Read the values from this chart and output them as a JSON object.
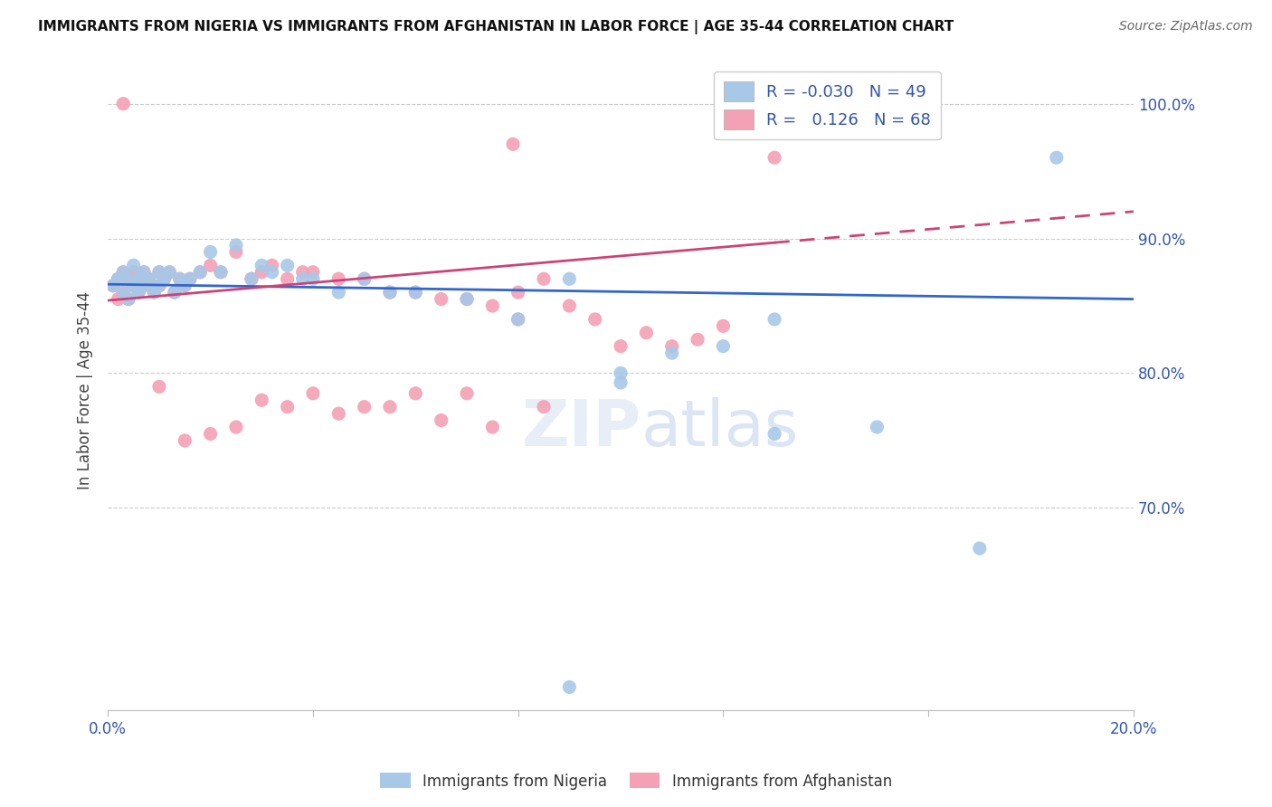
{
  "title": "IMMIGRANTS FROM NIGERIA VS IMMIGRANTS FROM AFGHANISTAN IN LABOR FORCE | AGE 35-44 CORRELATION CHART",
  "source": "Source: ZipAtlas.com",
  "ylabel": "In Labor Force | Age 35-44",
  "blue_color": "#a8c8e8",
  "pink_color": "#f4a0b5",
  "blue_line_color": "#3366cc",
  "pink_line_color": "#cc4477",
  "legend_blue_R": "-0.030",
  "legend_blue_N": "49",
  "legend_pink_R": "0.126",
  "legend_pink_N": "68",
  "nigeria_x": [
    0.001,
    0.002,
    0.003,
    0.003,
    0.004,
    0.004,
    0.005,
    0.005,
    0.006,
    0.006,
    0.007,
    0.007,
    0.008,
    0.009,
    0.01,
    0.01,
    0.011,
    0.012,
    0.013,
    0.014,
    0.015,
    0.016,
    0.018,
    0.02,
    0.022,
    0.025,
    0.028,
    0.03,
    0.032,
    0.035,
    0.038,
    0.04,
    0.045,
    0.05,
    0.055,
    0.06,
    0.07,
    0.08,
    0.09,
    0.1,
    0.11,
    0.12,
    0.09,
    0.13,
    0.15,
    0.17,
    0.185,
    0.13,
    0.1
  ],
  "nigeria_y": [
    0.865,
    0.87,
    0.875,
    0.86,
    0.87,
    0.855,
    0.865,
    0.88,
    0.87,
    0.86,
    0.875,
    0.865,
    0.87,
    0.86,
    0.875,
    0.865,
    0.87,
    0.875,
    0.86,
    0.87,
    0.865,
    0.87,
    0.875,
    0.89,
    0.875,
    0.895,
    0.87,
    0.88,
    0.875,
    0.88,
    0.87,
    0.87,
    0.86,
    0.87,
    0.86,
    0.86,
    0.855,
    0.84,
    0.87,
    0.8,
    0.815,
    0.82,
    0.567,
    0.755,
    0.76,
    0.67,
    0.96,
    0.84,
    0.793
  ],
  "afghanistan_x": [
    0.001,
    0.002,
    0.002,
    0.003,
    0.003,
    0.004,
    0.004,
    0.005,
    0.005,
    0.006,
    0.006,
    0.007,
    0.007,
    0.008,
    0.009,
    0.01,
    0.01,
    0.011,
    0.012,
    0.013,
    0.014,
    0.015,
    0.016,
    0.018,
    0.02,
    0.022,
    0.025,
    0.028,
    0.03,
    0.032,
    0.035,
    0.038,
    0.04,
    0.045,
    0.05,
    0.055,
    0.06,
    0.065,
    0.07,
    0.075,
    0.08,
    0.085,
    0.09,
    0.095,
    0.1,
    0.105,
    0.11,
    0.115,
    0.12,
    0.03,
    0.04,
    0.05,
    0.06,
    0.07,
    0.02,
    0.015,
    0.01,
    0.025,
    0.035,
    0.045,
    0.055,
    0.065,
    0.075,
    0.085,
    0.13,
    0.08,
    0.003,
    0.079
  ],
  "afghanistan_y": [
    0.865,
    0.87,
    0.855,
    0.875,
    0.86,
    0.87,
    0.855,
    0.865,
    0.875,
    0.87,
    0.86,
    0.875,
    0.865,
    0.87,
    0.86,
    0.875,
    0.865,
    0.87,
    0.875,
    0.86,
    0.87,
    0.865,
    0.87,
    0.875,
    0.88,
    0.875,
    0.89,
    0.87,
    0.875,
    0.88,
    0.87,
    0.875,
    0.875,
    0.87,
    0.87,
    0.86,
    0.86,
    0.855,
    0.855,
    0.85,
    0.86,
    0.87,
    0.85,
    0.84,
    0.82,
    0.83,
    0.82,
    0.825,
    0.835,
    0.78,
    0.785,
    0.775,
    0.785,
    0.785,
    0.755,
    0.75,
    0.79,
    0.76,
    0.775,
    0.77,
    0.775,
    0.765,
    0.76,
    0.775,
    0.96,
    0.84,
    1.0,
    0.97
  ],
  "xlim": [
    0.0,
    0.2
  ],
  "ylim": [
    0.55,
    1.025
  ],
  "ytick_positions": [
    0.7,
    0.8,
    0.9,
    1.0
  ],
  "ytick_labels": [
    "70.0%",
    "80.0%",
    "90.0%",
    "100.0%"
  ],
  "xtick_positions": [
    0.0,
    0.04,
    0.08,
    0.12,
    0.16,
    0.2
  ],
  "xtick_labels": [
    "0.0%",
    "",
    "",
    "",
    "",
    "20.0%"
  ]
}
